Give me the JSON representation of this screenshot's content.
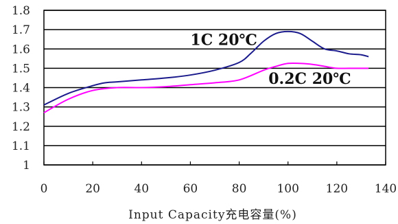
{
  "chart_data": {
    "type": "line",
    "title": "",
    "xlabel": "Input Capacity充电容量(%)",
    "ylabel": "",
    "xlim": [
      0,
      140
    ],
    "ylim": [
      1.0,
      1.8
    ],
    "xticks": [
      "0",
      "20",
      "40",
      "60",
      "80",
      "100",
      "120",
      "140"
    ],
    "yticks": [
      "1",
      "1.1",
      "1.2",
      "1.3",
      "1.4",
      "1.5",
      "1.6",
      "1.7",
      "1.8"
    ],
    "grid": "horizontal",
    "series": [
      {
        "name": "1C 20℃",
        "color": "#1a1a8c",
        "x": [
          0,
          10,
          20,
          25,
          30,
          40,
          50,
          60,
          70,
          80,
          85,
          90,
          95,
          100,
          105,
          110,
          115,
          120,
          125,
          130,
          133
        ],
        "y": [
          1.31,
          1.37,
          1.41,
          1.425,
          1.43,
          1.44,
          1.45,
          1.465,
          1.49,
          1.53,
          1.58,
          1.64,
          1.68,
          1.69,
          1.68,
          1.64,
          1.6,
          1.59,
          1.575,
          1.57,
          1.56
        ]
      },
      {
        "name": "0.2C 20℃",
        "color": "#ff00ff",
        "x": [
          0,
          10,
          20,
          30,
          40,
          50,
          60,
          70,
          80,
          90,
          95,
          100,
          105,
          110,
          115,
          120,
          125,
          130,
          133
        ],
        "y": [
          1.27,
          1.34,
          1.385,
          1.4,
          1.4,
          1.405,
          1.415,
          1.425,
          1.44,
          1.49,
          1.51,
          1.525,
          1.525,
          1.52,
          1.51,
          1.5,
          1.5,
          1.5,
          1.5
        ]
      }
    ],
    "annotations": [
      "1C 20℃",
      "0.2C 20℃"
    ]
  }
}
